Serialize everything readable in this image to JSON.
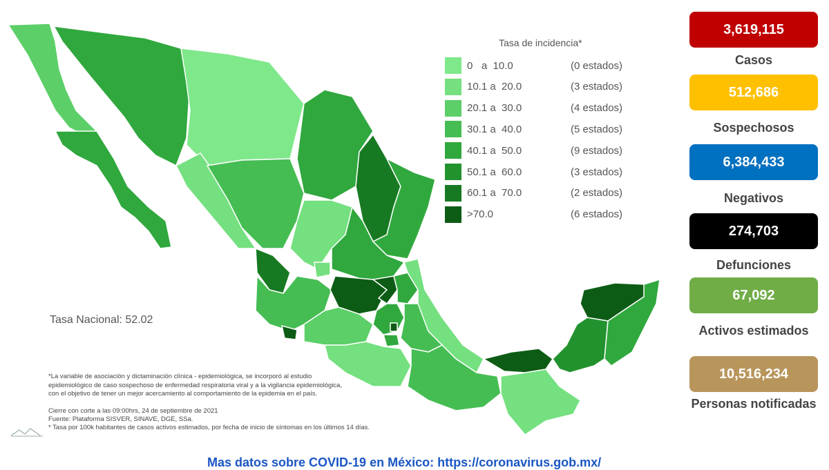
{
  "legend": {
    "title": "Tasa de incidencia*",
    "rows": [
      {
        "range": "0   a  10.0",
        "count": "(0 estados)",
        "color": "#7fe88b"
      },
      {
        "range": "10.1 a  20.0",
        "count": "(3 estados)",
        "color": "#74e07f"
      },
      {
        "range": "20.1 a  30.0",
        "count": "(4 estados)",
        "color": "#5ccf68"
      },
      {
        "range": "30.1 a  40.0",
        "count": "(5 estados)",
        "color": "#45bd53"
      },
      {
        "range": "40.1 a  50.0",
        "count": "(9 estados)",
        "color": "#30a83e"
      },
      {
        "range": "50.1 a  60.0",
        "count": "(3 estados)",
        "color": "#22922f"
      },
      {
        "range": "60.1 a  70.0",
        "count": "(2 estados)",
        "color": "#177a22"
      },
      {
        "range": ">70.0",
        "count": "(6 estados)",
        "color": "#0d5c15"
      }
    ]
  },
  "map": {
    "tasa_nacional": "Tasa Nacional: 52.02"
  },
  "notes": {
    "line1": "*La variable de asociación y dictaminación clínica - epidemiológica, se incorporó al estudio",
    "line2": "epidemiológico de caso sospechoso de enfermedad respiratoria viral y a la vigilancia epidemiológica,",
    "line3": "con el objetivo de tener un mejor acercamiento al comportamiento de la epidemia en el país."
  },
  "source": {
    "line1": "Cierre con corte a las 09:00hrs, 24 de septiembre de 2021",
    "line2": "Fuente: Plataforma SISVER, SINAVE, DGE, SSa.",
    "line3": "* Tasa por 100k habitantes de casos activos estimados, por fecha de inicio de síntomas en los últimos 14 días."
  },
  "stats": [
    {
      "value": "3,619,115",
      "label": "Casos",
      "color": "#c00000"
    },
    {
      "value": "512,686",
      "label": "Sospechosos",
      "color": "#ffc000"
    },
    {
      "value": "6,384,433",
      "label": "Negativos",
      "color": "#0070c0"
    },
    {
      "value": "274,703",
      "label": "Defunciones",
      "color": "#000000"
    },
    {
      "value": "67,092",
      "label": "Activos estimados",
      "color": "#70ad47"
    },
    {
      "value": "10,516,234",
      "label": "Personas notificadas",
      "color": "#b8955b"
    }
  ],
  "footer": {
    "text": "Mas datos sobre COVID-19 en México: https://coronavirus.gob.mx/"
  }
}
